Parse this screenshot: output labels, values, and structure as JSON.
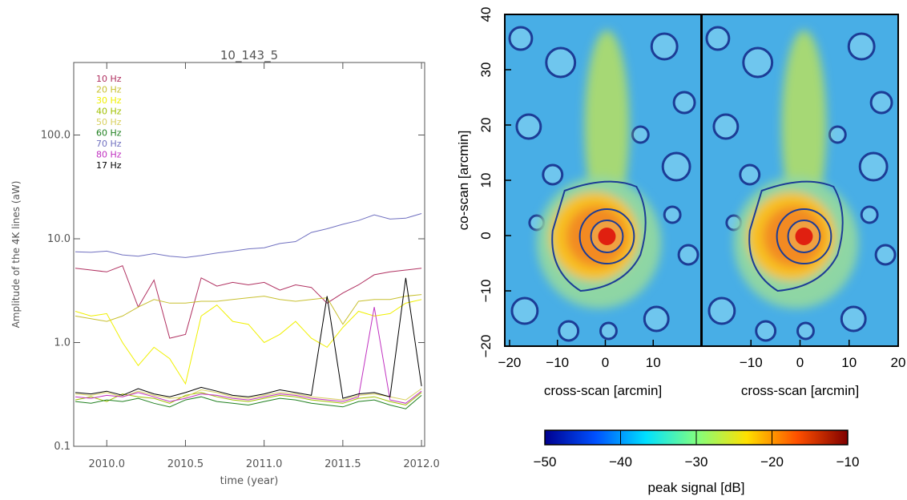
{
  "chart_data": [
    {
      "type": "line",
      "title": "10_143_5",
      "xlabel": "time (year)",
      "ylabel": "Amplitude of the 4K lines (aW)",
      "log_y": true,
      "xlim": [
        2009.79,
        2012.02
      ],
      "ylim": [
        0.1,
        500
      ],
      "xticks": [
        {
          "value": 2010,
          "label": "2010.0"
        },
        {
          "value": 2010.5,
          "label": "2010.5"
        },
        {
          "value": 2011,
          "label": "2011.0"
        },
        {
          "value": 2011.5,
          "label": "2011.5"
        },
        {
          "value": 2012,
          "label": "2012.0"
        }
      ],
      "yticks": [
        {
          "value": 0.1,
          "label": "0.1"
        },
        {
          "value": 1,
          "label": "1.0"
        },
        {
          "value": 10,
          "label": "10.0"
        },
        {
          "value": 100,
          "label": "100.0"
        }
      ],
      "x": [
        2009.8,
        2009.9,
        2010.0,
        2010.1,
        2010.2,
        2010.3,
        2010.4,
        2010.5,
        2010.6,
        2010.7,
        2010.8,
        2010.9,
        2011.0,
        2011.1,
        2011.2,
        2011.3,
        2011.4,
        2011.5,
        2011.6,
        2011.7,
        2011.8,
        2011.9,
        2012.0
      ],
      "series": [
        {
          "name": "10 Hz",
          "color": "#b03060",
          "values": [
            5.2,
            5.0,
            4.8,
            5.5,
            2.2,
            4.0,
            1.1,
            1.2,
            4.2,
            3.5,
            3.8,
            3.6,
            3.8,
            3.2,
            3.6,
            3.4,
            2.4,
            3.0,
            3.6,
            4.5,
            4.8,
            5.0,
            5.2
          ]
        },
        {
          "name": "20 Hz",
          "color": "#c8c030",
          "values": [
            1.8,
            1.7,
            1.6,
            1.8,
            2.2,
            2.6,
            2.4,
            2.4,
            2.5,
            2.5,
            2.6,
            2.7,
            2.8,
            2.6,
            2.5,
            2.6,
            2.7,
            1.5,
            2.5,
            2.6,
            2.6,
            2.8,
            2.9
          ]
        },
        {
          "name": "30 Hz",
          "color": "#f0f000",
          "values": [
            2.0,
            1.8,
            1.9,
            1.0,
            0.6,
            0.9,
            0.7,
            0.4,
            1.8,
            2.3,
            1.6,
            1.5,
            1.0,
            1.2,
            1.6,
            1.1,
            0.9,
            1.4,
            2.0,
            1.8,
            1.9,
            2.4,
            2.6
          ]
        },
        {
          "name": "40 Hz",
          "color": "#a0c000",
          "values": [
            0.28,
            0.3,
            0.27,
            0.32,
            0.3,
            0.29,
            0.26,
            0.31,
            0.33,
            0.3,
            0.28,
            0.27,
            0.29,
            0.31,
            0.3,
            0.28,
            0.27,
            0.26,
            0.29,
            0.3,
            0.27,
            0.25,
            0.33
          ]
        },
        {
          "name": "50 Hz",
          "color": "#d8d060",
          "values": [
            0.32,
            0.31,
            0.33,
            0.3,
            0.34,
            0.31,
            0.29,
            0.3,
            0.35,
            0.33,
            0.3,
            0.29,
            0.31,
            0.33,
            0.32,
            0.3,
            0.29,
            0.28,
            0.31,
            0.32,
            0.3,
            0.28,
            0.36
          ]
        },
        {
          "name": "60 Hz",
          "color": "#208020",
          "values": [
            0.27,
            0.26,
            0.28,
            0.27,
            0.29,
            0.26,
            0.24,
            0.28,
            0.3,
            0.27,
            0.26,
            0.25,
            0.27,
            0.29,
            0.28,
            0.26,
            0.25,
            0.24,
            0.27,
            0.28,
            0.25,
            0.23,
            0.31
          ]
        },
        {
          "name": "70 Hz",
          "color": "#7070c0",
          "values": [
            7.5,
            7.4,
            7.6,
            7.0,
            6.8,
            7.2,
            6.8,
            6.6,
            6.9,
            7.3,
            7.6,
            8.0,
            8.2,
            9.0,
            9.4,
            11.5,
            12.5,
            13.8,
            15.0,
            17.0,
            15.5,
            15.8,
            17.5
          ]
        },
        {
          "name": "80 Hz",
          "color": "#c030c0",
          "values": [
            0.3,
            0.29,
            0.31,
            0.3,
            0.33,
            0.3,
            0.27,
            0.29,
            0.32,
            0.31,
            0.29,
            0.28,
            0.3,
            0.32,
            0.31,
            0.29,
            0.28,
            0.27,
            0.3,
            2.2,
            0.28,
            0.26,
            0.34
          ]
        },
        {
          "name": "17 Hz",
          "color": "#000000",
          "values": [
            0.33,
            0.32,
            0.34,
            0.31,
            0.36,
            0.32,
            0.3,
            0.33,
            0.37,
            0.34,
            0.31,
            0.3,
            0.32,
            0.35,
            0.33,
            0.31,
            2.8,
            0.29,
            0.32,
            0.33,
            0.3,
            4.2,
            0.38
          ]
        }
      ]
    },
    {
      "type": "heatmap",
      "ylabel": "co-scan [arcmin]",
      "ylim": [
        -20,
        40
      ],
      "yticks": [
        {
          "value": -20,
          "label": "−20"
        },
        {
          "value": -10,
          "label": "−10"
        },
        0,
        10,
        20,
        30,
        40
      ],
      "panels": [
        {
          "xlabel": "cross-scan [arcmin]",
          "xlim": [
            -21,
            20
          ],
          "xticks": [
            {
              "value": -20,
              "label": "−20"
            },
            {
              "value": -10,
              "label": "−10"
            },
            0,
            10
          ]
        },
        {
          "xlabel": "cross-scan [arcmin]",
          "xlim": [
            -20,
            20
          ],
          "xticks": [
            {
              "value": -10,
              "label": "−10"
            },
            0,
            10,
            20
          ]
        }
      ],
      "colorbar": {
        "label": "peak signal [dB]",
        "lim": [
          -50,
          -10
        ],
        "ticks": [
          {
            "value": -50,
            "label": "−50"
          },
          {
            "value": -40,
            "label": "−40"
          },
          {
            "value": -30,
            "label": "−30"
          },
          {
            "value": -20,
            "label": "−20"
          },
          {
            "value": -10,
            "label": "−10"
          }
        ],
        "colors": [
          "#00008f",
          "#0050ff",
          "#00e0ff",
          "#80ff80",
          "#ffe000",
          "#ff5000",
          "#800000"
        ]
      }
    }
  ]
}
